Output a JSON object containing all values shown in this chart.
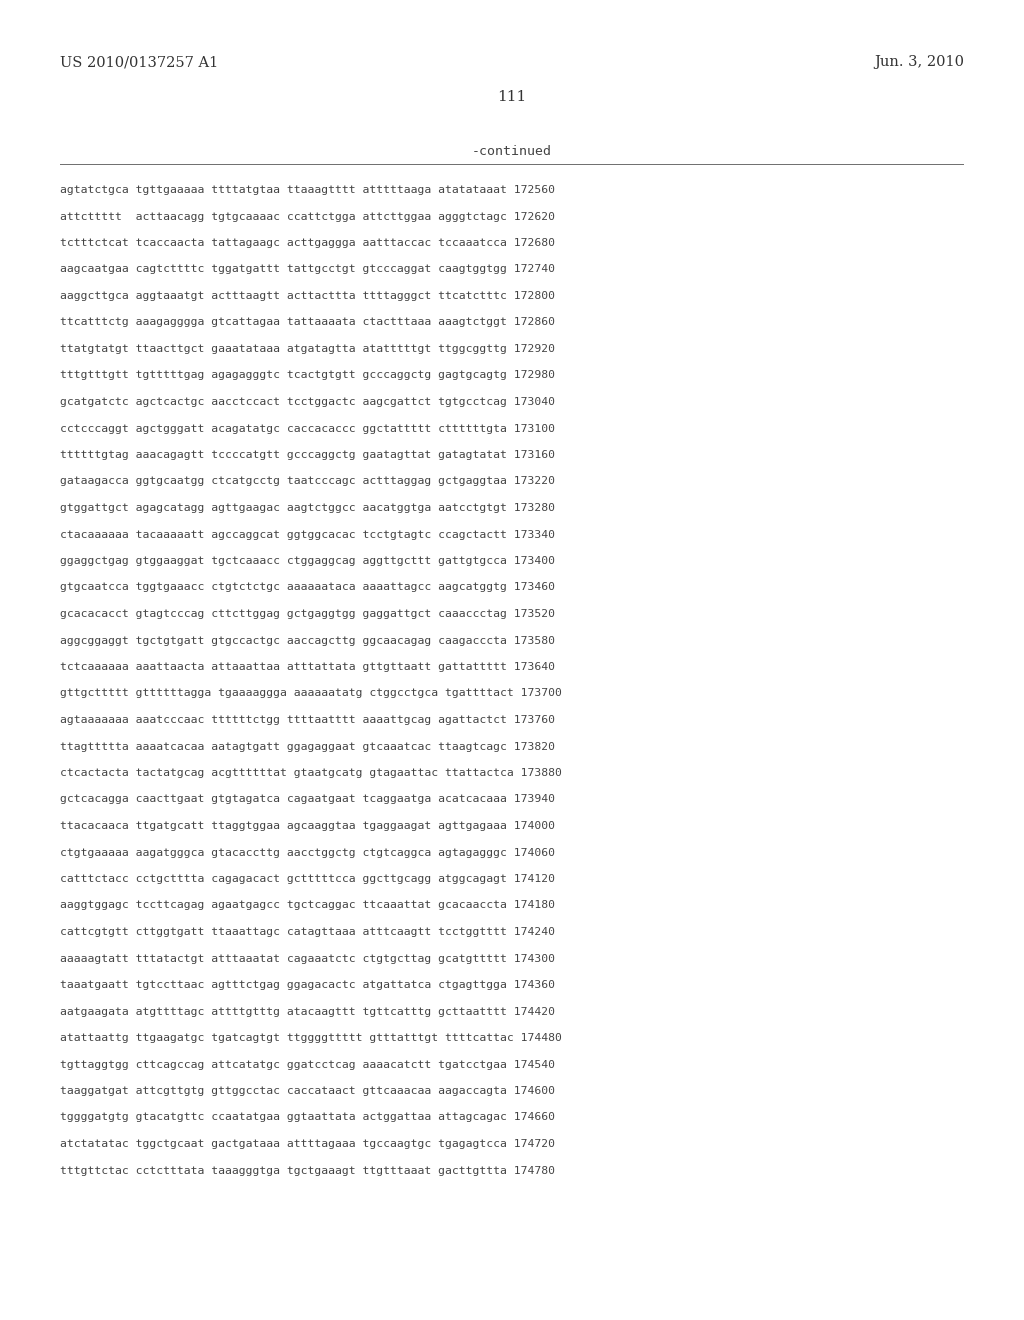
{
  "header_left": "US 2010/0137257 A1",
  "header_right": "Jun. 3, 2010",
  "page_number": "111",
  "continued_label": "-continued",
  "background_color": "#ffffff",
  "text_color": "#444444",
  "sequence_lines": [
    "agtatctgca tgttgaaaaa ttttatgtaa ttaaagtttt atttttaaga atatataaat 172560",
    "attcttttt  acttaacagg tgtgcaaaac ccattctgga attcttggaa agggtctagc 172620",
    "tctttctcat tcaccaacta tattagaagc acttgaggga aatttaccac tccaaatcca 172680",
    "aagcaatgaa cagtcttttc tggatgattt tattgcctgt gtcccaggat caagtggtgg 172740",
    "aaggcttgca aggtaaatgt actttaagtt acttacttta ttttagggct ttcatctttc 172800",
    "ttcatttctg aaagagggga gtcattagaa tattaaaata ctactttaaa aaagtctggt 172860",
    "ttatgtatgt ttaacttgct gaaatataaa atgatagtta atatttttgt ttggcggttg 172920",
    "tttgtttgtt tgtttttgag agagagggtc tcactgtgtt gcccaggctg gagtgcagtg 172980",
    "gcatgatctc agctcactgc aacctccact tcctggactc aagcgattct tgtgcctcag 173040",
    "cctcccaggt agctgggatt acagatatgc caccacaccc ggctattttt cttttttgta 173100",
    "ttttttgtag aaacagagtt tccccatgtt gcccaggctg gaatagttat gatagtatat 173160",
    "gataagacca ggtgcaatgg ctcatgcctg taatcccagc actttaggag gctgaggtaa 173220",
    "gtggattgct agagcatagg agttgaagac aagtctggcc aacatggtga aatcctgtgt 173280",
    "ctacaaaaaa tacaaaaatt agccaggcat ggtggcacac tcctgtagtc ccagctactt 173340",
    "ggaggctgag gtggaaggat tgctcaaacc ctggaggcag aggttgcttt gattgtgcca 173400",
    "gtgcaatcca tggtgaaacc ctgtctctgc aaaaaataca aaaattagcc aagcatggtg 173460",
    "gcacacacct gtagtcccag cttcttggag gctgaggtgg gaggattgct caaaccctag 173520",
    "aggcggaggt tgctgtgatt gtgccactgc aaccagcttg ggcaacagag caagacccta 173580",
    "tctcaaaaaa aaattaacta attaaattaa atttattata gttgttaatt gattattttt 173640",
    "gttgcttttt gttttttagga tgaaaaggga aaaaaatatg ctggcctgca tgattttact 173700",
    "agtaaaaaaa aaatcccaac ttttttctgg ttttaatttt aaaattgcag agattactct 173760",
    "ttagttttta aaaatcacaa aatagtgatt ggagaggaat gtcaaatcac ttaagtcagc 173820",
    "ctcactacta tactatgcag acgttttttat gtaatgcatg gtagaattac ttattactca 173880",
    "gctcacagga caacttgaat gtgtagatca cagaatgaat tcaggaatga acatcacaaa 173940",
    "ttacacaaca ttgatgcatt ttaggtggaa agcaaggtaa tgaggaagat agttgagaaa 174000",
    "ctgtgaaaaa aagatgggca gtacaccttg aacctggctg ctgtcaggca agtagagggc 174060",
    "catttctacc cctgctttta cagagacact gctttttcca ggcttgcagg atggcagagt 174120",
    "aaggtggagc tccttcagag agaatgagcc tgctcaggac ttcaaattat gcacaaccta 174180",
    "cattcgtgtt cttggtgatt ttaaattagc catagttaaa atttcaagtt tcctggtttt 174240",
    "aaaaagtatt tttatactgt atttaaatat cagaaatctc ctgtgcttag gcatgttttt 174300",
    "taaatgaatt tgtccttaac agtttctgag ggagacactc atgattatca ctgagttgga 174360",
    "aatgaagata atgttttagc attttgtttg atacaagttt tgttcatttg gcttaatttt 174420",
    "atattaattg ttgaagatgc tgatcagtgt ttggggttttt gtttatttgt ttttcattac 174480",
    "tgttaggtgg cttcagccag attcatatgc ggatcctcag aaaacatctt tgatcctgaa 174540",
    "taaggatgat attcgttgtg gttggcctac caccataact gttcaaacaa aagaccagta 174600",
    "tggggatgtg gtacatgttc ccaatatgaa ggtaattata actggattaa attagcagac 174660",
    "atctatatac tggctgcaat gactgataaa attttagaaa tgccaagtgc tgagagtcca 174720",
    "tttgttctac cctctttata taaagggtga tgctgaaagt ttgtttaaat gacttgttta 174780"
  ]
}
